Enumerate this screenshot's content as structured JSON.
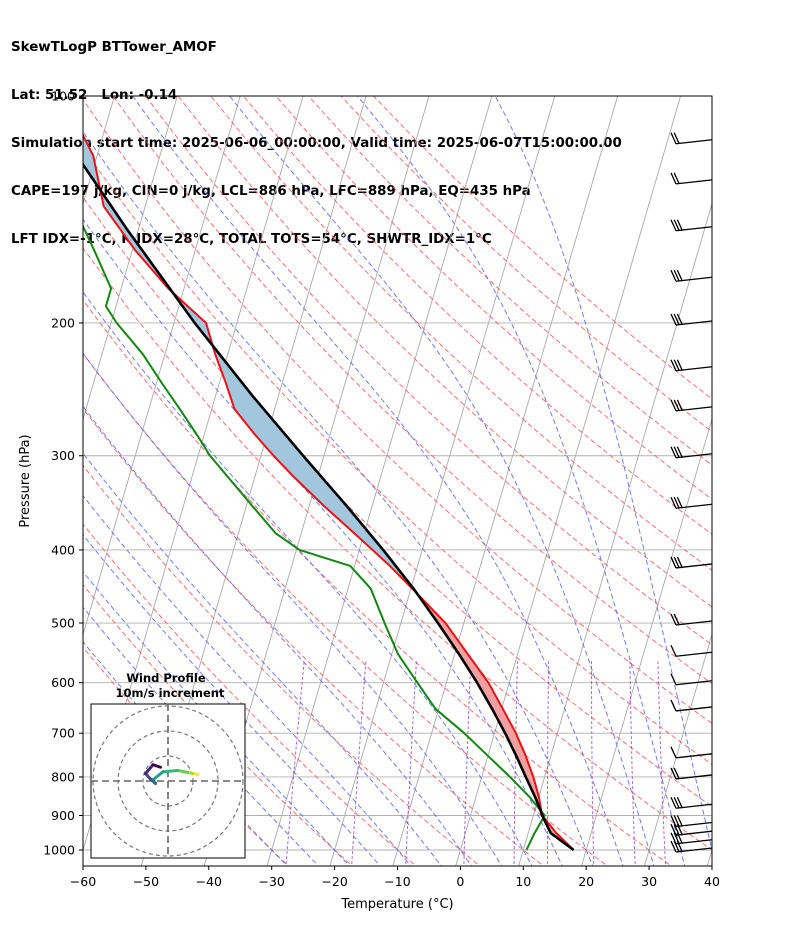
{
  "header": {
    "line1": "SkewTLogP BTTower_AMOF",
    "line2": "Lat: 51.52   Lon: -0.14",
    "line3": "Simulation start time: 2025-06-06_00:00:00, Valid time: 2025-06-07T15:00:00.00",
    "line4": "CAPE=197 j/kg, CIN=0 j/kg, LCL=886 hPa, LFC=889 hPa, EQ=435 hPa",
    "line5": "LFT IDX=-1°C, K IDX=28°C, TOTAL TOTS=54°C, SHWTR_IDX=1°C"
  },
  "chart_data": [
    {
      "type": "skewt",
      "title": "SkewTLogP BTTower_AMOF",
      "xlabel": "Temperature (°C)",
      "ylabel": "Pressure (hPa)",
      "xlim": [
        -60,
        40
      ],
      "ylim": [
        1050,
        100
      ],
      "skew": 35,
      "x_ticks": [
        -60,
        -50,
        -40,
        -30,
        -20,
        -10,
        0,
        10,
        20,
        30,
        40
      ],
      "x_tick_labels": [
        "−60",
        "−50",
        "−40",
        "−30",
        "−20",
        "−10",
        "0",
        "10",
        "20",
        "30",
        "40"
      ],
      "y_ticks": [
        1000,
        900,
        800,
        700,
        600,
        500,
        400,
        300,
        200,
        100
      ],
      "y_tick_labels": [
        "1000",
        "900",
        "800",
        "700",
        "600",
        "500",
        "400",
        "300",
        "200",
        "100"
      ],
      "grid": true,
      "colors": {
        "temperature": "#ee1111",
        "dewpoint": "#118811",
        "parcel": "#000000",
        "cape_fill": "#a3c6df",
        "cin_fill": "#f0a0a0",
        "dry_adiabat": "#ff5555",
        "moist_adiabat": "#5566ff",
        "mixing_ratio": "#9944bb",
        "isotherm": "#aaaaaa"
      },
      "series": [
        {
          "name": "temperature",
          "pressure": [
            1000,
            950,
            900,
            850,
            800,
            750,
            700,
            650,
            600,
            550,
            500,
            450,
            420,
            400,
            380,
            350,
            320,
            300,
            280,
            260,
            240,
            220,
            200,
            180,
            160,
            140,
            120,
            110,
            100
          ],
          "values": [
            18.0,
            14.5,
            11.4,
            10.0,
            8.2,
            6.0,
            3.4,
            0.2,
            -3.3,
            -7.9,
            -12.9,
            -19.8,
            -24.4,
            -27.9,
            -31.6,
            -37.6,
            -43.8,
            -48.0,
            -52.2,
            -56.4,
            -59.0,
            -62.0,
            -64.9,
            -72.5,
            -79.6,
            -86.6,
            -90.6,
            -94.2,
            -97.6
          ]
        },
        {
          "name": "dewpoint",
          "pressure": [
            1000,
            950,
            900,
            850,
            800,
            750,
            700,
            650,
            600,
            550,
            500,
            450,
            420,
            400,
            380,
            350,
            320,
            300,
            280,
            260,
            240,
            220,
            200,
            190,
            180,
            160,
            140,
            120,
            100
          ],
          "values": [
            10.5,
            11.0,
            11.8,
            8.5,
            4.5,
            0.0,
            -4.8,
            -10.5,
            -14.6,
            -19.0,
            -22.6,
            -26.4,
            -30.7,
            -39.5,
            -44.1,
            -49.0,
            -54.3,
            -58.1,
            -61.4,
            -65.1,
            -69.2,
            -73.5,
            -79.1,
            -81.6,
            -81.6,
            -86.1,
            -91.4,
            -97.9,
            -104.8
          ]
        },
        {
          "name": "parcel",
          "pressure": [
            1000,
            950,
            900,
            886,
            850,
            800,
            750,
            700,
            650,
            600,
            550,
            500,
            450,
            400,
            350,
            300,
            250,
            200,
            150,
            100
          ],
          "values": [
            18.0,
            13.6,
            11.4,
            10.9,
            9.4,
            7.0,
            4.5,
            1.7,
            -1.5,
            -5.1,
            -9.3,
            -14.1,
            -19.6,
            -26.2,
            -34.0,
            -43.3,
            -54.1,
            -66.7,
            -81.9,
            -102.4
          ]
        }
      ],
      "wind_barbs": [
        {
          "pressure": 1000,
          "barb": "5-flags"
        },
        {
          "pressure": 975,
          "barb": "5-flags"
        },
        {
          "pressure": 950,
          "barb": "5-flags"
        },
        {
          "pressure": 925,
          "barb": "4-flags"
        },
        {
          "pressure": 875,
          "barb": "3-flags"
        },
        {
          "pressure": 800,
          "barb": "2-flags"
        },
        {
          "pressure": 750,
          "barb": "1-flag"
        },
        {
          "pressure": 650,
          "barb": "1-flag"
        },
        {
          "pressure": 600,
          "barb": "1-flag"
        },
        {
          "pressure": 550,
          "barb": "1-flag"
        },
        {
          "pressure": 500,
          "barb": "2-flags"
        },
        {
          "pressure": 420,
          "barb": "4-flags"
        },
        {
          "pressure": 350,
          "barb": "4-flags"
        },
        {
          "pressure": 300,
          "barb": "4-flags"
        },
        {
          "pressure": 260,
          "barb": "4-flags"
        },
        {
          "pressure": 230,
          "barb": "3-flags"
        },
        {
          "pressure": 200,
          "barb": "4-flags"
        },
        {
          "pressure": 175,
          "barb": "3-flags"
        },
        {
          "pressure": 150,
          "barb": "3-flags"
        },
        {
          "pressure": 130,
          "barb": "2-flags"
        },
        {
          "pressure": 115,
          "barb": "2-flags"
        }
      ]
    },
    {
      "type": "hodograph",
      "title": "Wind Profile",
      "subtitle": "10m/s increment",
      "ring_increment_ms": 10,
      "rings": 3,
      "colormap": "viridis",
      "u": [
        12.0,
        10.0,
        8.0,
        4.0,
        -2.0,
        -6.0,
        -5.0,
        -7.0,
        -9.0,
        -6.0,
        -3.0
      ],
      "v": [
        2.6,
        3.0,
        3.4,
        4.2,
        3.7,
        0.5,
        -1.0,
        0.8,
        3.0,
        6.5,
        5.5
      ]
    }
  ]
}
